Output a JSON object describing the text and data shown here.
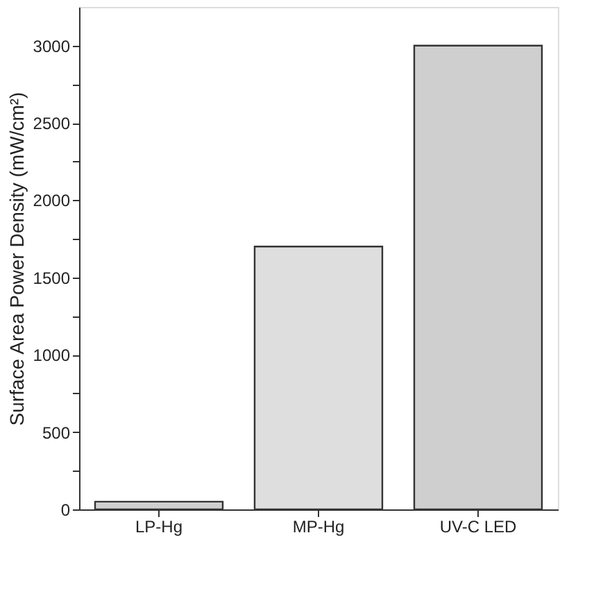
{
  "chart_data": {
    "type": "bar",
    "ylabel": "Surface Area Power Density (mW/cm²)",
    "categories": [
      "LP-Hg",
      "MP-Hg",
      "UV-C LED"
    ],
    "values": [
      50,
      1700,
      3000
    ],
    "colors": [
      "#cfcfcf",
      "#dedede",
      "#cfcfcf"
    ],
    "ylim": [
      0,
      3250
    ],
    "yticks": [
      0,
      {
        "value": 250,
        "label": null
      },
      500,
      {
        "value": 750,
        "label": null
      },
      1000,
      {
        "value": 1250,
        "label": null
      },
      1500,
      {
        "value": 1750,
        "label": null
      },
      2000,
      {
        "value": 2250,
        "label": null
      },
      2500,
      {
        "value": 2750,
        "label": null
      },
      3000
    ],
    "grid": false
  }
}
